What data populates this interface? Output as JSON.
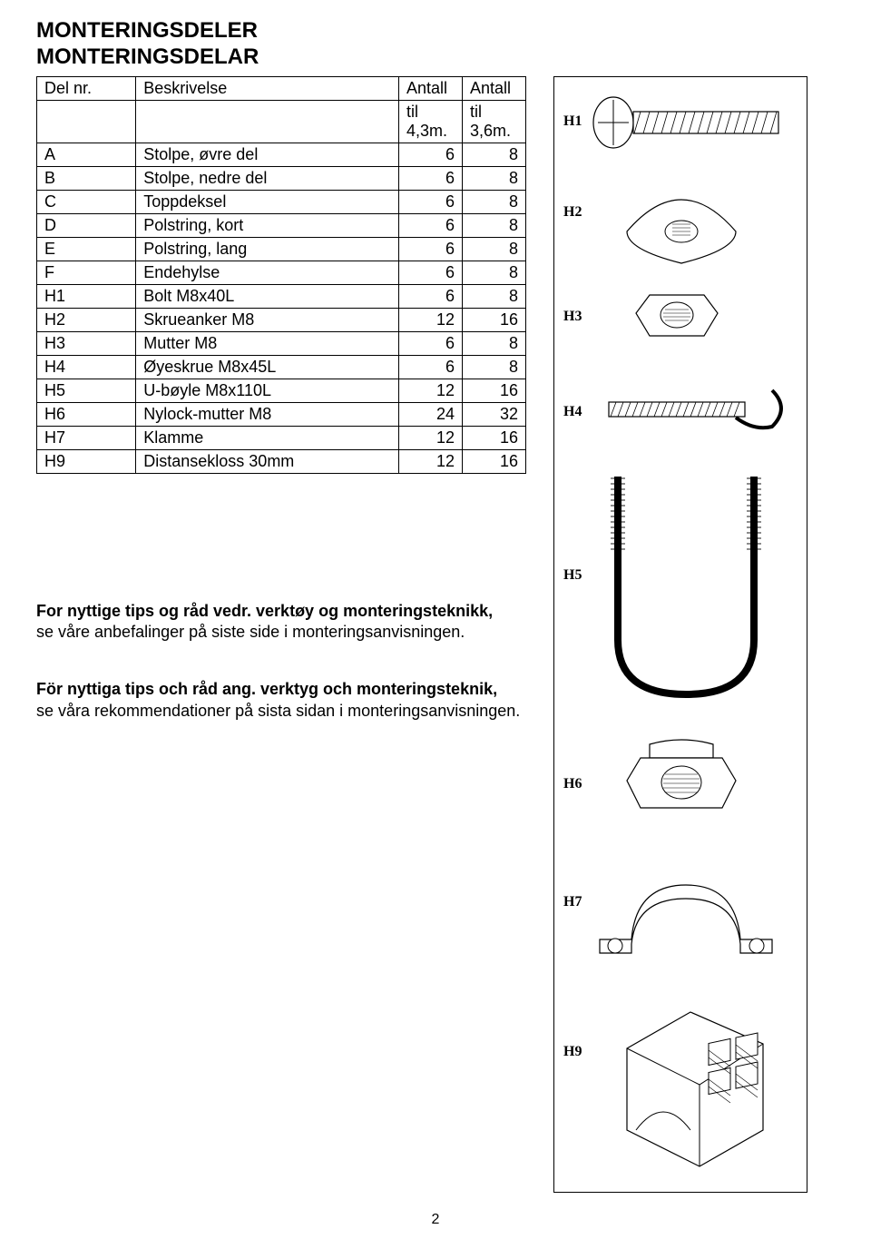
{
  "heading_line1": "MONTERINGSDELER",
  "heading_line2": "MONTERINGSDELAR",
  "table": {
    "headers": {
      "col1": "Del nr.",
      "col2": "Beskrivelse",
      "col3_top": "Antall",
      "col3_sub": "til 4,3m.",
      "col4_top": "Antall",
      "col4_sub": "til 3,6m."
    },
    "rows": [
      {
        "c1": "A",
        "c2": "Stolpe, øvre del",
        "c3": "6",
        "c4": "8"
      },
      {
        "c1": "B",
        "c2": "Stolpe, nedre del",
        "c3": "6",
        "c4": "8"
      },
      {
        "c1": "C",
        "c2": "Toppdeksel",
        "c3": "6",
        "c4": "8"
      },
      {
        "c1": "D",
        "c2": "Polstring, kort",
        "c3": "6",
        "c4": "8"
      },
      {
        "c1": "E",
        "c2": "Polstring, lang",
        "c3": "6",
        "c4": "8"
      },
      {
        "c1": "F",
        "c2": "Endehylse",
        "c3": "6",
        "c4": "8"
      },
      {
        "c1": "H1",
        "c2": "Bolt M8x40L",
        "c3": "6",
        "c4": "8"
      },
      {
        "c1": "H2",
        "c2": "Skrueanker M8",
        "c3": "12",
        "c4": "16"
      },
      {
        "c1": "H3",
        "c2": "Mutter M8",
        "c3": "6",
        "c4": "8"
      },
      {
        "c1": "H4",
        "c2": "Øyeskrue M8x45L",
        "c3": "6",
        "c4": "8"
      },
      {
        "c1": "H5",
        "c2": "U-bøyle M8x110L",
        "c3": "12",
        "c4": "16"
      },
      {
        "c1": "H6",
        "c2": "Nylock-mutter M8",
        "c3": "24",
        "c4": "32"
      },
      {
        "c1": "H7",
        "c2": "Klamme",
        "c3": "12",
        "c4": "16"
      },
      {
        "c1": "H9",
        "c2": "Distansekloss 30mm",
        "c3": "12",
        "c4": "16"
      }
    ]
  },
  "tips_no": {
    "bold": "For nyttige tips og råd vedr. verktøy og monteringsteknikk,",
    "rest": "se våre anbefalinger på siste side i monteringsanvisningen."
  },
  "tips_sv": {
    "bold": "För nyttiga tips och råd ang. verktyg och monteringsteknik,",
    "rest": "se våra rekommendationer på sista sidan i monteringsanvisningen."
  },
  "illus_labels": {
    "h1": "H1",
    "h2": "H2",
    "h3": "H3",
    "h4": "H4",
    "h5": "H5",
    "h6": "H6",
    "h7": "H7",
    "h9": "H9"
  },
  "page_number": "2",
  "colors": {
    "text": "#000000",
    "bg": "#ffffff",
    "border": "#000000"
  }
}
